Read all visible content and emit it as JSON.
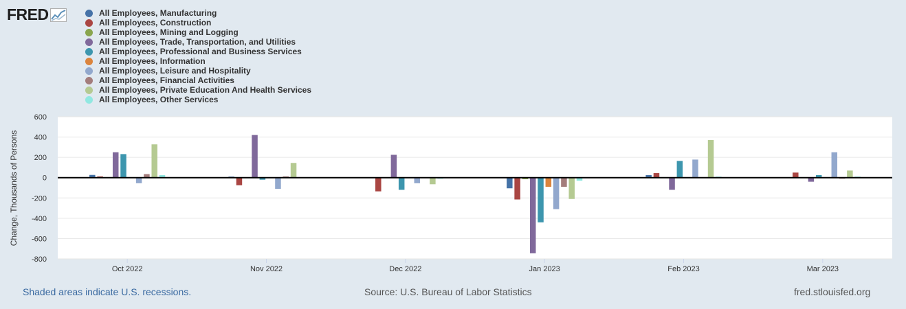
{
  "logo": {
    "text": "FRED"
  },
  "chart_data": {
    "type": "bar",
    "xlabel": "",
    "ylabel": "Change, Thousands of Persons",
    "ylim": [
      -800,
      600
    ],
    "yticks": [
      600,
      400,
      200,
      0,
      -200,
      -400,
      -600,
      -800
    ],
    "categories": [
      "Oct 2022",
      "Nov 2022",
      "Dec 2022",
      "Jan 2023",
      "Feb 2023",
      "Mar 2023"
    ],
    "series": [
      {
        "name": "All Employees, Manufacturing",
        "color": "#4572a7",
        "values": [
          27,
          10,
          0,
          -105,
          25,
          0
        ]
      },
      {
        "name": "All Employees, Construction",
        "color": "#aa4643",
        "values": [
          12,
          -75,
          -135,
          -215,
          45,
          50
        ]
      },
      {
        "name": "All Employees, Mining and Logging",
        "color": "#89a54e",
        "values": [
          0,
          0,
          0,
          -15,
          0,
          0
        ]
      },
      {
        "name": "All Employees, Trade, Transportation, and Utilities",
        "color": "#80699b",
        "values": [
          250,
          420,
          225,
          -745,
          -120,
          -40
        ]
      },
      {
        "name": "All Employees, Professional and Business Services",
        "color": "#3d96ae",
        "values": [
          232,
          -20,
          -120,
          -440,
          165,
          25
        ]
      },
      {
        "name": "All Employees, Information",
        "color": "#db843d",
        "values": [
          0,
          0,
          0,
          -90,
          0,
          0
        ]
      },
      {
        "name": "All Employees, Leisure and Hospitality",
        "color": "#92a8cd",
        "values": [
          -55,
          -110,
          -55,
          -310,
          178,
          250
        ]
      },
      {
        "name": "All Employees, Financial Activities",
        "color": "#a47d7c",
        "values": [
          35,
          12,
          0,
          -90,
          0,
          -10
        ]
      },
      {
        "name": "All Employees, Private Education And Health Services",
        "color": "#b5ca92",
        "values": [
          328,
          145,
          -65,
          -210,
          370,
          70
        ]
      },
      {
        "name": "All Employees, Other Services",
        "color": "#91e8e1",
        "values": [
          25,
          0,
          -10,
          -30,
          10,
          10
        ]
      }
    ]
  },
  "footer": {
    "recession_note": "Shaded areas indicate U.S. recessions.",
    "source": "Source: U.S. Bureau of Labor Statistics",
    "site": "fred.stlouisfed.org"
  }
}
